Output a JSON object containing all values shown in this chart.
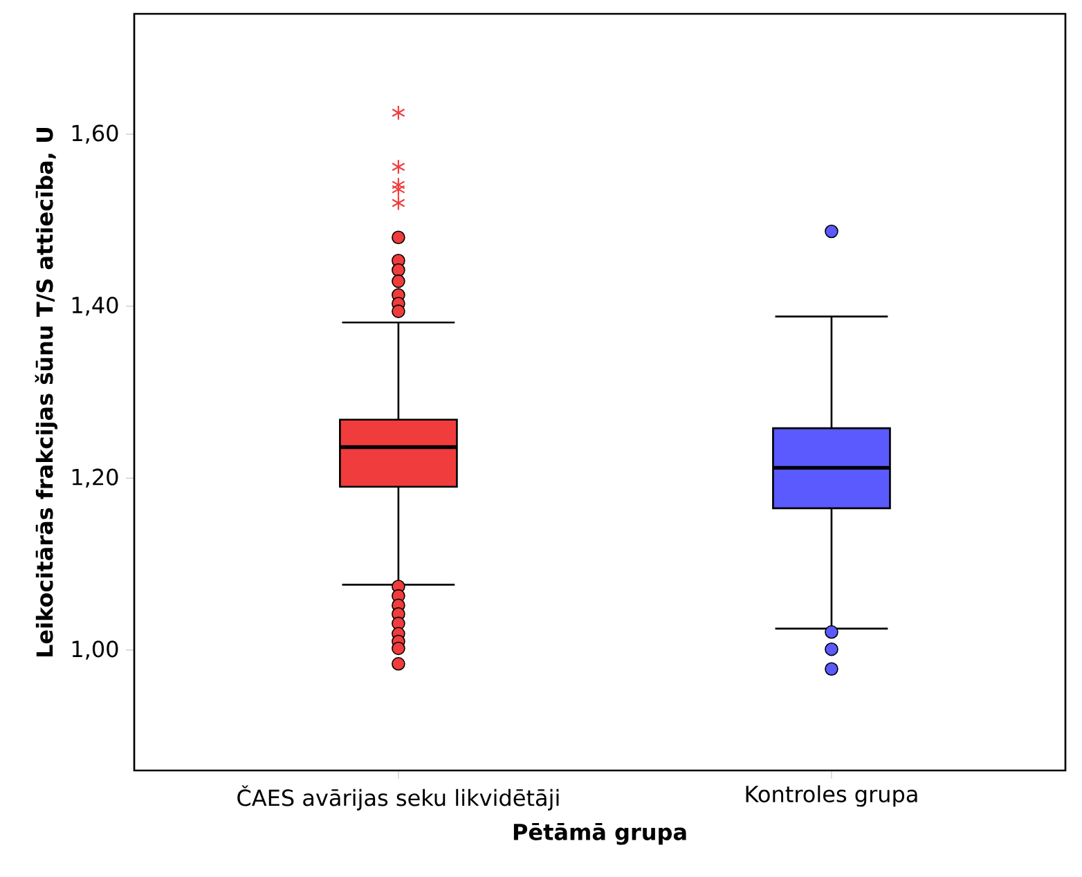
{
  "chart_data": {
    "type": "box",
    "xlabel": "Pētāmā grupa",
    "ylabel": "Leikocitārās frakcijas šūnu T/S attiecība, U",
    "categories": [
      "ČAES avārijas seku likvidētāji",
      "Kontroles grupa"
    ],
    "colors": [
      "#f03c3c",
      "#5a5aff"
    ],
    "boxes": [
      {
        "low": 1.076,
        "q1": 1.19,
        "median": 1.236,
        "q3": 1.268,
        "high": 1.381,
        "outliers": [
          1.625,
          1.562,
          1.541,
          1.536,
          1.52,
          1.48,
          1.453,
          1.442,
          1.429,
          1.413,
          1.403,
          1.394,
          1.074,
          1.063,
          1.052,
          1.042,
          1.031,
          1.019,
          1.01,
          1.002,
          0.984
        ]
      },
      {
        "low": 1.025,
        "q1": 1.165,
        "median": 1.212,
        "q3": 1.258,
        "high": 1.388,
        "outliers": [
          1.487,
          1.021,
          1.001,
          0.978
        ]
      }
    ],
    "ylim": [
      0.86,
      1.74
    ],
    "yticks": [
      {
        "value": 1.0,
        "label": "1,00"
      },
      {
        "value": 1.2,
        "label": "1,20"
      },
      {
        "value": 1.4,
        "label": "1,40"
      },
      {
        "value": 1.6,
        "label": "1,60"
      }
    ],
    "grid": false
  }
}
